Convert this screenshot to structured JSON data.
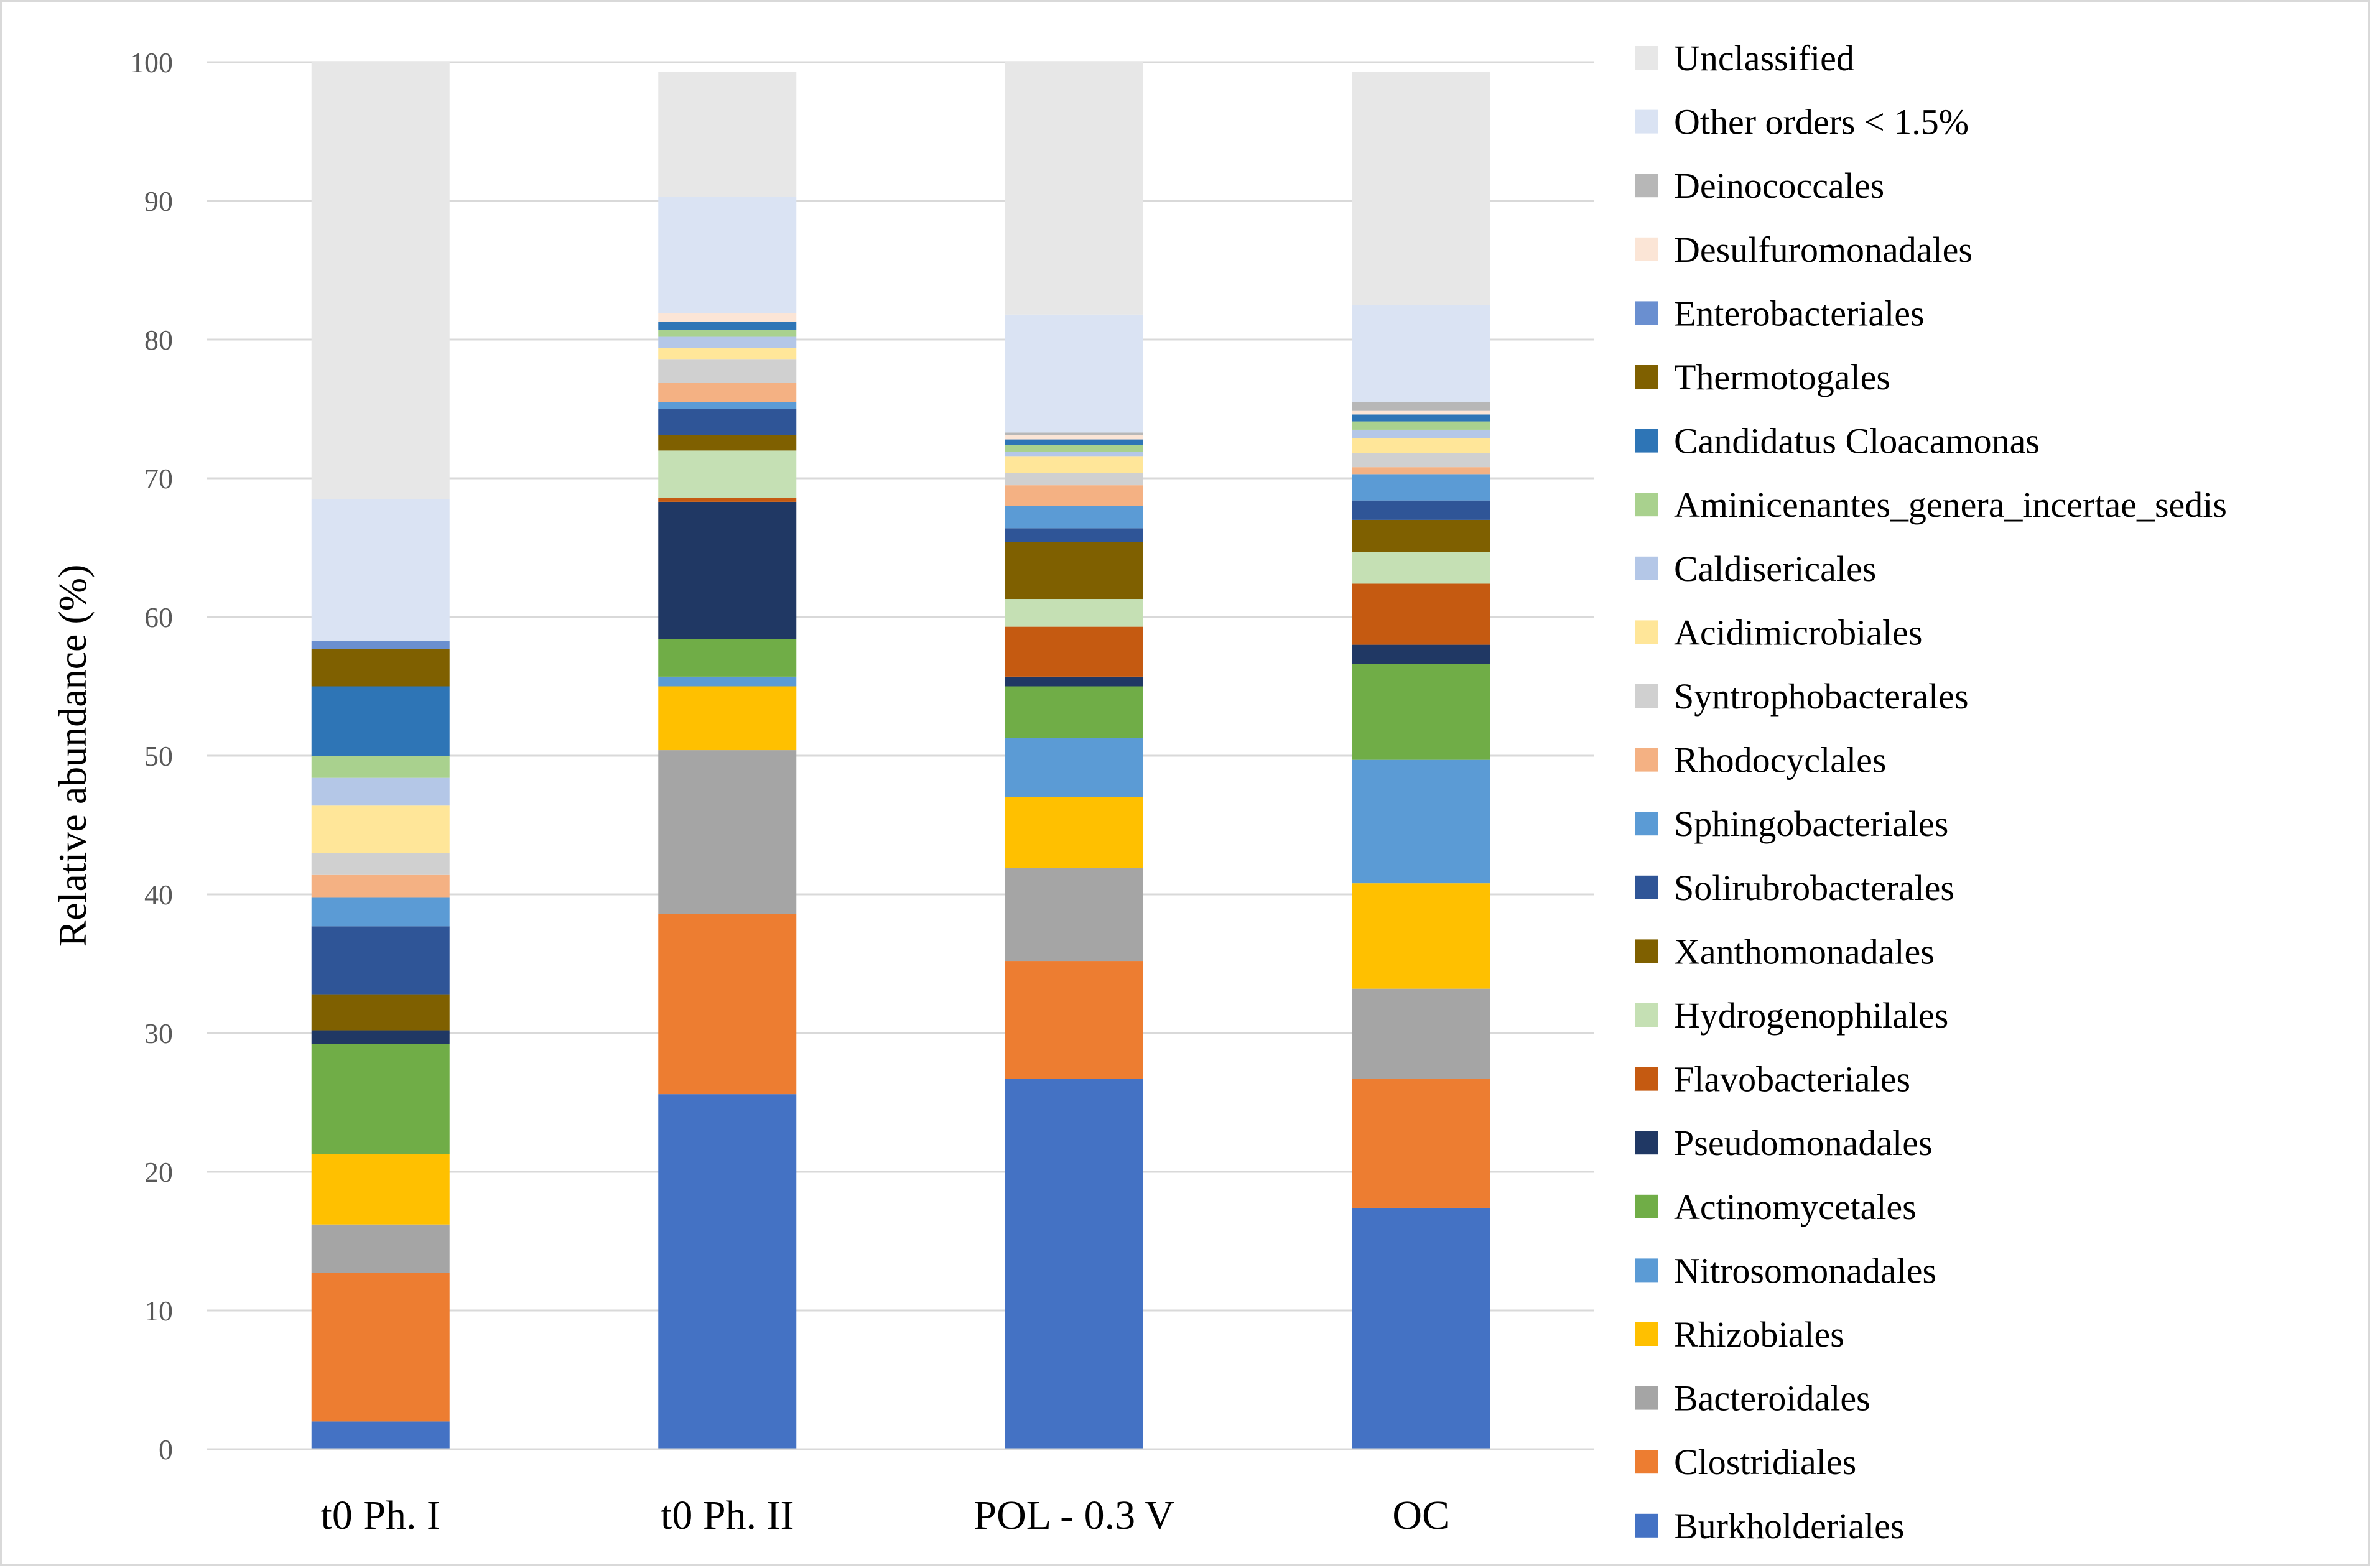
{
  "chart_data": {
    "type": "bar",
    "stacked": true,
    "title": "",
    "xlabel": "",
    "ylabel": "Relative abundance (%)",
    "ylim": [
      0,
      100
    ],
    "yticks": [
      0,
      10,
      20,
      30,
      40,
      50,
      60,
      70,
      80,
      90,
      100
    ],
    "grid": true,
    "legend_position": "right",
    "categories": [
      "t0 Ph. I",
      "t0 Ph. II",
      "POL - 0.3 V",
      "OC"
    ],
    "series": [
      {
        "name": "Burkholderiales",
        "color": "#4472C4",
        "values": [
          2.0,
          25.6,
          26.7,
          17.4
        ]
      },
      {
        "name": "Clostridiales",
        "color": "#ED7D31",
        "values": [
          10.7,
          13.0,
          8.5,
          9.3
        ]
      },
      {
        "name": "Bacteroidales",
        "color": "#A5A5A5",
        "values": [
          3.5,
          11.8,
          6.7,
          6.5
        ]
      },
      {
        "name": "Rhizobiales",
        "color": "#FFC000",
        "values": [
          5.1,
          4.6,
          5.1,
          7.6
        ]
      },
      {
        "name": "Nitrosomonadales",
        "color": "#5B9BD5",
        "values": [
          0.0,
          0.7,
          4.3,
          8.9
        ]
      },
      {
        "name": "Actinomycetales",
        "color": "#70AD47",
        "values": [
          7.9,
          2.7,
          3.7,
          6.9
        ]
      },
      {
        "name": "Pseudomonadales",
        "color": "#203864",
        "values": [
          1.0,
          9.9,
          0.7,
          1.4
        ]
      },
      {
        "name": "Flavobacteriales",
        "color": "#C55A11",
        "values": [
          0.0,
          0.3,
          3.6,
          4.4
        ]
      },
      {
        "name": "Hydrogenophilales",
        "color": "#C5E0B4",
        "values": [
          0.0,
          3.4,
          2.0,
          2.3
        ]
      },
      {
        "name": "Xanthomonadales",
        "color": "#7F6000",
        "values": [
          2.6,
          1.1,
          4.1,
          2.3
        ]
      },
      {
        "name": "Solirubrobacterales",
        "color": "#2F5597",
        "values": [
          4.9,
          1.9,
          1.0,
          1.4
        ]
      },
      {
        "name": "Sphingobacteriales",
        "color": "#5B9BD5",
        "values": [
          2.1,
          0.5,
          1.6,
          1.9
        ]
      },
      {
        "name": "Rhodocyclales",
        "color": "#F4B183",
        "values": [
          1.6,
          1.4,
          1.5,
          0.5
        ]
      },
      {
        "name": "Syntrophobacterales",
        "color": "#D0D0D0",
        "values": [
          1.6,
          1.7,
          0.9,
          1.0
        ]
      },
      {
        "name": "Acidimicrobiales",
        "color": "#FFE699",
        "values": [
          3.4,
          0.8,
          1.2,
          1.1
        ]
      },
      {
        "name": "Caldisericales",
        "color": "#B4C7E7",
        "values": [
          2.0,
          0.8,
          0.3,
          0.6
        ]
      },
      {
        "name": "Aminicenantes_genera_incertae_sedis",
        "color": "#A9D18E",
        "values": [
          1.6,
          0.5,
          0.5,
          0.6
        ]
      },
      {
        "name": "Candidatus Cloacamonas",
        "color": "#2E75B6",
        "values": [
          5.0,
          0.6,
          0.4,
          0.5
        ]
      },
      {
        "name": "Thermotogales",
        "color": "#7F6000",
        "values": [
          2.7,
          0.0,
          0.0,
          0.0
        ]
      },
      {
        "name": "Enterobacteriales",
        "color": "#6A8FD0",
        "values": [
          0.6,
          0.0,
          0.0,
          0.0
        ]
      },
      {
        "name": "Desulfuromonadales",
        "color": "#FBE5D6",
        "values": [
          0.0,
          0.6,
          0.3,
          0.3
        ]
      },
      {
        "name": "Deinococcales",
        "color": "#B7B7B7",
        "values": [
          0.0,
          0.0,
          0.2,
          0.6
        ]
      },
      {
        "name": "Other orders < 1.5%",
        "color": "#DAE3F3",
        "values": [
          10.2,
          8.4,
          8.5,
          7.0
        ]
      },
      {
        "name": "Unclassified",
        "color": "#E7E7E7",
        "values": [
          31.5,
          9.0,
          18.2,
          16.8
        ]
      }
    ],
    "legend": [
      {
        "name": "Unclassified",
        "color": "#E7E7E7"
      },
      {
        "name": "Other orders < 1.5%",
        "color": "#DAE3F3"
      },
      {
        "name": "Deinococcales",
        "color": "#B7B7B7"
      },
      {
        "name": "Desulfuromonadales",
        "color": "#FBE5D6"
      },
      {
        "name": "Enterobacteriales",
        "color": "#6A8FD0"
      },
      {
        "name": "Thermotogales",
        "color": "#7F6000"
      },
      {
        "name": "Candidatus Cloacamonas",
        "color": "#2E75B6"
      },
      {
        "name": "Aminicenantes_genera_incertae_sedis",
        "color": "#A9D18E"
      },
      {
        "name": "Caldisericales",
        "color": "#B4C7E7"
      },
      {
        "name": "Acidimicrobiales",
        "color": "#FFE699"
      },
      {
        "name": "Syntrophobacterales",
        "color": "#D0D0D0"
      },
      {
        "name": "Rhodocyclales",
        "color": "#F4B183"
      },
      {
        "name": "Sphingobacteriales",
        "color": "#5B9BD5"
      },
      {
        "name": "Solirubrobacterales",
        "color": "#2F5597"
      },
      {
        "name": "Xanthomonadales",
        "color": "#7F6000"
      },
      {
        "name": "Hydrogenophilales",
        "color": "#C5E0B4"
      },
      {
        "name": "Flavobacteriales",
        "color": "#C55A11"
      },
      {
        "name": "Pseudomonadales",
        "color": "#203864"
      },
      {
        "name": "Actinomycetales",
        "color": "#70AD47"
      },
      {
        "name": "Nitrosomonadales",
        "color": "#5B9BD5"
      },
      {
        "name": "Rhizobiales",
        "color": "#FFC000"
      },
      {
        "name": "Bacteroidales",
        "color": "#A5A5A5"
      },
      {
        "name": "Clostridiales",
        "color": "#ED7D31"
      },
      {
        "name": "Burkholderiales",
        "color": "#4472C4"
      }
    ]
  }
}
